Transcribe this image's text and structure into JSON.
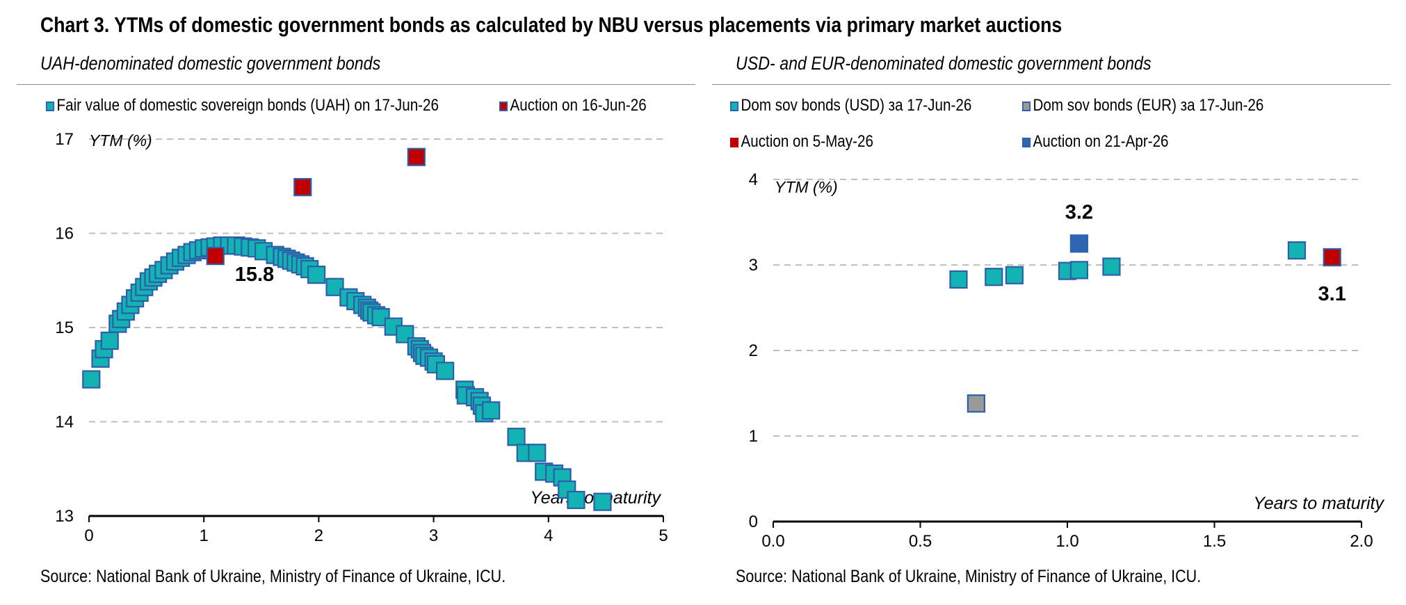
{
  "title": "Chart 3. YTMs of domestic government bonds as calculated by NBU versus placements via primary market auctions",
  "source": "Source: National Bank of Ukraine, Ministry of Finance of Ukraine, ICU.",
  "colors": {
    "teal": "#14B3B3",
    "edge": "#2E5EA8",
    "red": "#C00000",
    "blue": "#2E65B3",
    "gray": "#999999",
    "grid": "#BFBFBF"
  },
  "chart_data": [
    {
      "type": "scatter",
      "title": "UAH-denominated domestic government bonds",
      "ylabel": "YTM (%)",
      "xlabel": "Years to maturity",
      "xlim": [
        0,
        5
      ],
      "ylim": [
        13,
        17
      ],
      "xticks": [
        "0",
        "1",
        "2",
        "3",
        "4",
        "5"
      ],
      "yticks": [
        "13",
        "14",
        "15",
        "16",
        "17"
      ],
      "grid": "horizontal dashed",
      "legend": "top",
      "series": [
        {
          "name": "Fair value of domestic sovereign bonds (UAH) on 17-Jun-26",
          "color": "#14B3B3",
          "points": [
            [
              0.02,
              14.45
            ],
            [
              0.1,
              14.67
            ],
            [
              0.13,
              14.77
            ],
            [
              0.18,
              14.86
            ],
            [
              0.25,
              15.04
            ],
            [
              0.28,
              15.09
            ],
            [
              0.32,
              15.17
            ],
            [
              0.36,
              15.24
            ],
            [
              0.4,
              15.31
            ],
            [
              0.44,
              15.37
            ],
            [
              0.48,
              15.43
            ],
            [
              0.52,
              15.49
            ],
            [
              0.56,
              15.53
            ],
            [
              0.6,
              15.57
            ],
            [
              0.65,
              15.61
            ],
            [
              0.7,
              15.66
            ],
            [
              0.75,
              15.7
            ],
            [
              0.8,
              15.74
            ],
            [
              0.85,
              15.77
            ],
            [
              0.9,
              15.8
            ],
            [
              0.95,
              15.82
            ],
            [
              1.0,
              15.84
            ],
            [
              1.05,
              15.85
            ],
            [
              1.1,
              15.86
            ],
            [
              1.16,
              15.87
            ],
            [
              1.22,
              15.87
            ],
            [
              1.28,
              15.87
            ],
            [
              1.34,
              15.86
            ],
            [
              1.4,
              15.85
            ],
            [
              1.46,
              15.84
            ],
            [
              1.52,
              15.81
            ],
            [
              1.62,
              15.77
            ],
            [
              1.68,
              15.75
            ],
            [
              1.72,
              15.73
            ],
            [
              1.76,
              15.71
            ],
            [
              1.8,
              15.69
            ],
            [
              1.84,
              15.67
            ],
            [
              1.88,
              15.65
            ],
            [
              1.92,
              15.62
            ],
            [
              1.98,
              15.56
            ],
            [
              2.14,
              15.43
            ],
            [
              2.26,
              15.32
            ],
            [
              2.32,
              15.28
            ],
            [
              2.38,
              15.24
            ],
            [
              2.42,
              15.21
            ],
            [
              2.44,
              15.18
            ],
            [
              2.46,
              15.16
            ],
            [
              2.5,
              15.13
            ],
            [
              2.54,
              15.11
            ],
            [
              2.65,
              15.01
            ],
            [
              2.75,
              14.93
            ],
            [
              2.85,
              14.8
            ],
            [
              2.88,
              14.77
            ],
            [
              2.9,
              14.73
            ],
            [
              2.92,
              14.7
            ],
            [
              2.96,
              14.68
            ],
            [
              3.0,
              14.64
            ],
            [
              3.02,
              14.61
            ],
            [
              3.1,
              14.54
            ],
            [
              3.27,
              14.34
            ],
            [
              3.28,
              14.28
            ],
            [
              3.36,
              14.26
            ],
            [
              3.4,
              14.22
            ],
            [
              3.42,
              14.17
            ],
            [
              3.44,
              14.09
            ],
            [
              3.5,
              14.12
            ],
            [
              3.72,
              13.84
            ],
            [
              3.8,
              13.67
            ],
            [
              3.9,
              13.67
            ],
            [
              3.96,
              13.47
            ],
            [
              4.05,
              13.45
            ],
            [
              4.12,
              13.41
            ],
            [
              4.16,
              13.28
            ],
            [
              4.24,
              13.17
            ],
            [
              4.47,
              13.15
            ]
          ]
        },
        {
          "name": "Auction on 16-Jun-26",
          "color": "#C00000",
          "points": [
            [
              1.1,
              15.76
            ],
            [
              1.86,
              16.49
            ],
            [
              2.85,
              16.81
            ]
          ]
        }
      ],
      "annotations": [
        {
          "text": "15.8",
          "x": 1.1,
          "y": 15.76
        }
      ]
    },
    {
      "type": "scatter",
      "title": "USD- and EUR-denominated domestic government bonds",
      "ylabel": "YTM (%)",
      "xlabel": "Years to maturity",
      "xlim": [
        0,
        2
      ],
      "ylim": [
        0,
        4
      ],
      "xticks": [
        "0.0",
        "0.5",
        "1.0",
        "1.5",
        "2.0"
      ],
      "yticks": [
        "0",
        "1",
        "2",
        "3",
        "4"
      ],
      "grid": "horizontal dashed",
      "legend": "top",
      "series": [
        {
          "name": "Dom sov bonds (USD) за 17-Jun-26",
          "color": "#14B3B3",
          "points": [
            [
              0.63,
              2.83
            ],
            [
              0.75,
              2.86
            ],
            [
              0.82,
              2.88
            ],
            [
              1.0,
              2.93
            ],
            [
              1.04,
              2.94
            ],
            [
              1.15,
              2.98
            ],
            [
              1.78,
              3.17
            ]
          ]
        },
        {
          "name": "Dom sov bonds (EUR) за 17-Jun-26",
          "color": "#999999",
          "points": [
            [
              0.69,
              1.38
            ]
          ]
        },
        {
          "name": "Auction on 5-May-26",
          "color": "#C00000",
          "points": [
            [
              1.9,
              3.09
            ]
          ]
        },
        {
          "name": "Auction on 21-Apr-26",
          "color": "#2E65B3",
          "points": [
            [
              1.04,
              3.25
            ]
          ]
        }
      ],
      "annotations": [
        {
          "text": "3.2",
          "x": 1.04,
          "y": 3.25
        },
        {
          "text": "3.1",
          "x": 1.9,
          "y": 3.09
        }
      ]
    }
  ]
}
